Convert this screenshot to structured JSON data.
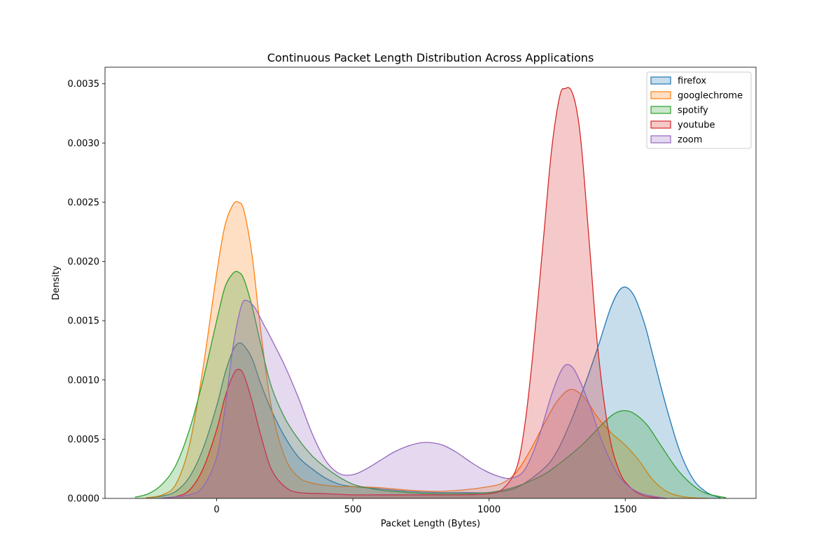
{
  "chart_data": {
    "type": "area",
    "title": "Continuous Packet Length Distribution Across Applications",
    "xlabel": "Packet Length (Bytes)",
    "ylabel": "Density",
    "xlim": [
      -410,
      1980
    ],
    "ylim": [
      0,
      0.00364
    ],
    "xticks": [
      0,
      500,
      1000,
      1500
    ],
    "xtick_labels": [
      "0",
      "500",
      "1000",
      "1500"
    ],
    "yticks": [
      0,
      0.0005,
      0.001,
      0.0015,
      0.002,
      0.0025,
      0.003,
      0.0035
    ],
    "ytick_labels": [
      "0.0000",
      "0.0005",
      "0.0010",
      "0.0015",
      "0.0020",
      "0.0025",
      "0.0030",
      "0.0035"
    ],
    "grid": false,
    "legend_position": "top-right",
    "series": [
      {
        "name": "firefox",
        "color": "#1f77b4",
        "x": [
          -260,
          -200,
          -150,
          -100,
          -50,
          0,
          30,
          60,
          80,
          100,
          130,
          160,
          200,
          250,
          300,
          350,
          400,
          450,
          500,
          600,
          700,
          800,
          900,
          1000,
          1100,
          1200,
          1250,
          1300,
          1350,
          1400,
          1450,
          1490,
          1530,
          1570,
          1600,
          1650,
          1700,
          1750,
          1800,
          1850
        ],
        "y": [
          5e-06,
          2e-05,
          6e-05,
          0.00018,
          0.00042,
          0.00078,
          0.00105,
          0.00125,
          0.00131,
          0.00129,
          0.00118,
          0.00098,
          0.00075,
          0.00052,
          0.00035,
          0.00025,
          0.00017,
          0.00012,
          0.0001,
          8e-05,
          6e-05,
          5e-05,
          5e-05,
          5e-05,
          9e-05,
          0.00025,
          0.0004,
          0.00065,
          0.00095,
          0.00128,
          0.00163,
          0.00178,
          0.00172,
          0.00148,
          0.00122,
          0.00078,
          0.0004,
          0.00016,
          5e-05,
          5e-06
        ]
      },
      {
        "name": "googlechrome",
        "color": "#ff7f0e",
        "x": [
          -260,
          -200,
          -150,
          -100,
          -50,
          0,
          30,
          60,
          80,
          100,
          130,
          160,
          200,
          250,
          300,
          350,
          400,
          450,
          500,
          600,
          700,
          800,
          900,
          1000,
          1050,
          1100,
          1150,
          1200,
          1250,
          1300,
          1350,
          1400,
          1450,
          1500,
          1550,
          1600,
          1650,
          1700,
          1750,
          1800
        ],
        "y": [
          5e-06,
          3e-05,
          0.00012,
          0.00045,
          0.0011,
          0.0019,
          0.0023,
          0.00248,
          0.0025,
          0.00243,
          0.00205,
          0.00145,
          0.00078,
          0.00035,
          0.00018,
          0.00013,
          0.00011,
          0.0001,
          0.0001,
          9e-05,
          7e-05,
          6e-05,
          7e-05,
          0.0001,
          0.00013,
          0.00022,
          0.0004,
          0.00062,
          0.00082,
          0.00092,
          0.00085,
          0.00068,
          0.00055,
          0.00045,
          0.00032,
          0.00016,
          6e-05,
          2e-05,
          5e-06,
          0
        ]
      },
      {
        "name": "spotify",
        "color": "#2ca02c",
        "x": [
          -300,
          -250,
          -200,
          -150,
          -100,
          -50,
          0,
          30,
          60,
          80,
          100,
          130,
          160,
          200,
          250,
          300,
          350,
          400,
          450,
          500,
          550,
          600,
          700,
          800,
          900,
          1000,
          1100,
          1200,
          1250,
          1300,
          1350,
          1400,
          1450,
          1490,
          1530,
          1580,
          1630,
          1700,
          1780,
          1870
        ],
        "y": [
          1e-05,
          4e-05,
          0.00012,
          0.00028,
          0.00058,
          0.001,
          0.0015,
          0.00178,
          0.0019,
          0.00191,
          0.00185,
          0.00162,
          0.00132,
          0.00095,
          0.00068,
          0.0005,
          0.00036,
          0.00026,
          0.00018,
          0.00012,
          9e-05,
          7e-05,
          5e-05,
          4e-05,
          4e-05,
          5e-05,
          0.0001,
          0.0002,
          0.00028,
          0.00037,
          0.00047,
          0.00059,
          0.0007,
          0.00074,
          0.00072,
          0.00062,
          0.00045,
          0.00022,
          6e-05,
          5e-06
        ]
      },
      {
        "name": "youtube",
        "color": "#d62728",
        "x": [
          -200,
          -150,
          -100,
          -50,
          0,
          30,
          60,
          80,
          100,
          130,
          160,
          200,
          250,
          300,
          400,
          500,
          600,
          700,
          800,
          900,
          1000,
          1050,
          1100,
          1130,
          1160,
          1200,
          1230,
          1260,
          1280,
          1300,
          1320,
          1340,
          1370,
          1400,
          1440,
          1480,
          1520,
          1560,
          1600,
          1650
        ],
        "y": [
          3e-06,
          1.5e-05,
          7e-05,
          0.00025,
          0.00058,
          0.00085,
          0.00104,
          0.00109,
          0.00104,
          0.00082,
          0.00055,
          0.00025,
          0.0001,
          5e-05,
          4e-05,
          3e-05,
          3e-05,
          3e-05,
          3e-05,
          3e-05,
          4e-05,
          8e-05,
          0.00025,
          0.0006,
          0.0012,
          0.0022,
          0.00295,
          0.0034,
          0.00346,
          0.00345,
          0.0033,
          0.00295,
          0.0021,
          0.00125,
          0.00055,
          0.00022,
          9e-05,
          3e-05,
          1e-05,
          0
        ]
      },
      {
        "name": "zoom",
        "color": "#9467bd",
        "x": [
          -200,
          -100,
          -50,
          0,
          30,
          60,
          90,
          110,
          140,
          170,
          200,
          250,
          300,
          350,
          400,
          450,
          500,
          550,
          600,
          650,
          700,
          750,
          790,
          830,
          880,
          930,
          980,
          1030,
          1080,
          1130,
          1180,
          1230,
          1270,
          1300,
          1330,
          1370,
          1420,
          1480,
          1550,
          1650
        ],
        "y": [
          3e-06,
          3e-05,
          0.0001,
          0.00035,
          0.00075,
          0.00128,
          0.00162,
          0.00167,
          0.00161,
          0.00148,
          0.00135,
          0.00112,
          0.00085,
          0.00055,
          0.00032,
          0.00021,
          0.0002,
          0.00025,
          0.00032,
          0.00039,
          0.00044,
          0.00047,
          0.00047,
          0.00045,
          0.00039,
          0.00031,
          0.00024,
          0.00019,
          0.00017,
          0.00024,
          0.0005,
          0.00088,
          0.0011,
          0.00112,
          0.00101,
          0.00078,
          0.00045,
          0.00018,
          5e-05,
          0
        ]
      }
    ]
  }
}
